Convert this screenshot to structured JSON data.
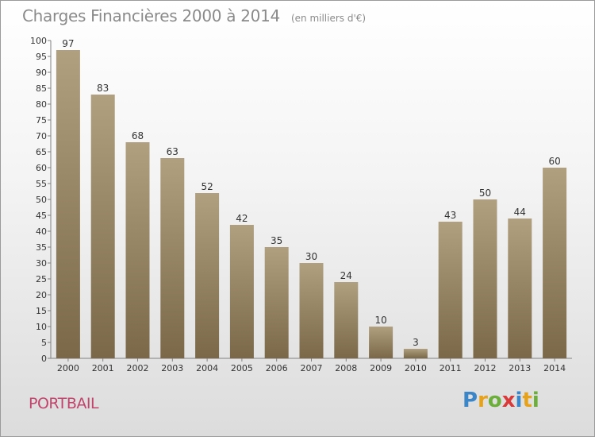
{
  "header": {
    "title": "Charges Financières 2000 à 2014",
    "unit": "(en milliers d'€)"
  },
  "footer": {
    "commune": "PORTBAIL",
    "logo": "Proxiti"
  },
  "chart_data": {
    "type": "bar",
    "title": "Charges Financières 2000 à 2014",
    "subtitle": "(en milliers d'€)",
    "categories": [
      "2000",
      "2001",
      "2002",
      "2003",
      "2004",
      "2005",
      "2006",
      "2007",
      "2008",
      "2009",
      "2010",
      "2011",
      "2012",
      "2013",
      "2014"
    ],
    "values": [
      97,
      83,
      68,
      63,
      52,
      42,
      35,
      30,
      24,
      10,
      3,
      43,
      50,
      44,
      60
    ],
    "ylim": [
      0,
      100
    ],
    "ytick_step": 5,
    "grid": false,
    "bar_color_top": "#b0a080",
    "bar_color_bottom": "#7a6848",
    "axis_color": "#808080",
    "text_color": "#333333"
  }
}
